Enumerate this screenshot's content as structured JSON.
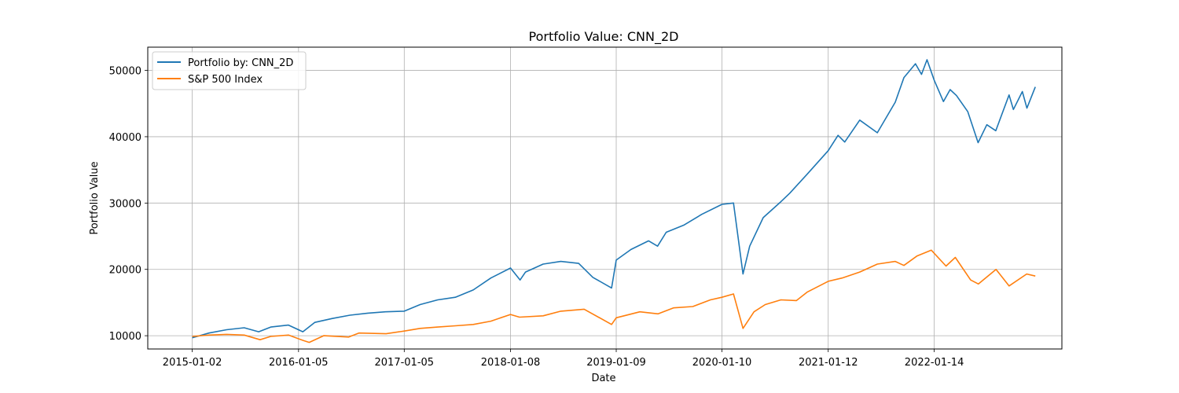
{
  "chart_data": {
    "type": "line",
    "title": "Portfolio Value: CNN_2D",
    "xlabel": "Date",
    "ylabel": "Portfolio Value",
    "x_ticks": [
      "2015-01-02",
      "2016-01-05",
      "2017-01-05",
      "2018-01-08",
      "2019-01-09",
      "2020-01-10",
      "2021-01-12",
      "2022-01-14"
    ],
    "y_ticks": [
      10000,
      20000,
      30000,
      40000,
      50000
    ],
    "ylim": [
      8000,
      53500
    ],
    "xlim": [
      "2014-08-01",
      "2023-04-01"
    ],
    "grid": true,
    "legend_position": "top-left",
    "series": [
      {
        "name": "Portfolio by: CNN_2D",
        "color": "#1f77b4",
        "x": [
          "2015-01-02",
          "2015-03-01",
          "2015-05-01",
          "2015-07-01",
          "2015-08-20",
          "2015-10-01",
          "2015-12-01",
          "2016-01-20",
          "2016-03-01",
          "2016-05-01",
          "2016-07-01",
          "2016-09-01",
          "2016-11-01",
          "2017-01-05",
          "2017-03-01",
          "2017-05-01",
          "2017-07-01",
          "2017-09-01",
          "2017-11-01",
          "2018-01-08",
          "2018-02-10",
          "2018-03-01",
          "2018-05-01",
          "2018-07-01",
          "2018-09-01",
          "2018-10-20",
          "2018-12-24",
          "2019-01-09",
          "2019-03-01",
          "2019-05-01",
          "2019-06-01",
          "2019-07-01",
          "2019-09-01",
          "2019-11-01",
          "2020-01-10",
          "2020-02-19",
          "2020-03-23",
          "2020-04-15",
          "2020-06-01",
          "2020-08-01",
          "2020-09-01",
          "2020-11-01",
          "2021-01-12",
          "2021-02-15",
          "2021-03-10",
          "2021-05-01",
          "2021-07-01",
          "2021-09-01",
          "2021-10-01",
          "2021-11-10",
          "2021-12-01",
          "2021-12-20",
          "2022-01-14",
          "2022-02-15",
          "2022-03-10",
          "2022-04-01",
          "2022-05-10",
          "2022-06-15",
          "2022-07-15",
          "2022-08-15",
          "2022-09-30",
          "2022-10-15",
          "2022-11-15",
          "2022-12-01",
          "2022-12-30"
        ],
        "values": [
          9700,
          10400,
          10900,
          11200,
          10600,
          11300,
          11600,
          10600,
          12000,
          12600,
          13100,
          13400,
          13600,
          13700,
          14700,
          15400,
          15800,
          16900,
          18700,
          20200,
          18400,
          19600,
          20800,
          21200,
          20900,
          18800,
          17200,
          21400,
          23000,
          24300,
          23500,
          25600,
          26700,
          28300,
          29800,
          30000,
          19300,
          23500,
          27800,
          30200,
          31500,
          34400,
          37900,
          40200,
          39200,
          42500,
          40600,
          45200,
          48900,
          51000,
          49400,
          51600,
          48500,
          45300,
          47100,
          46200,
          43800,
          39100,
          41800,
          40900,
          46300,
          44100,
          46800,
          44300,
          47500
        ]
      },
      {
        "name": "S&P 500 Index",
        "color": "#ff7f0e",
        "x": [
          "2015-01-02",
          "2015-03-01",
          "2015-05-01",
          "2015-07-01",
          "2015-08-25",
          "2015-10-01",
          "2015-12-01",
          "2016-01-20",
          "2016-02-11",
          "2016-04-01",
          "2016-06-27",
          "2016-08-01",
          "2016-11-03",
          "2017-01-05",
          "2017-03-01",
          "2017-05-01",
          "2017-07-01",
          "2017-09-01",
          "2017-11-01",
          "2018-01-08",
          "2018-02-08",
          "2018-05-01",
          "2018-07-01",
          "2018-09-20",
          "2018-12-24",
          "2019-01-09",
          "2019-04-01",
          "2019-06-03",
          "2019-07-26",
          "2019-10-01",
          "2019-12-01",
          "2020-01-10",
          "2020-02-19",
          "2020-03-23",
          "2020-04-30",
          "2020-06-08",
          "2020-08-01",
          "2020-09-24",
          "2020-11-01",
          "2021-01-12",
          "2021-03-01",
          "2021-05-01",
          "2021-07-01",
          "2021-09-01",
          "2021-10-01",
          "2021-11-15",
          "2022-01-04",
          "2022-02-24",
          "2022-03-28",
          "2022-05-20",
          "2022-06-16",
          "2022-08-16",
          "2022-09-30",
          "2022-11-30",
          "2022-12-30"
        ],
        "values": [
          9900,
          10100,
          10200,
          10100,
          9400,
          9900,
          10100,
          9300,
          9000,
          10000,
          9800,
          10400,
          10300,
          10700,
          11100,
          11300,
          11500,
          11700,
          12200,
          13200,
          12800,
          13000,
          13700,
          14000,
          11700,
          12700,
          13600,
          13300,
          14200,
          14400,
          15400,
          15800,
          16300,
          11100,
          13600,
          14700,
          15400,
          15300,
          16600,
          18200,
          18700,
          19600,
          20800,
          21200,
          20600,
          22000,
          22900,
          20500,
          21800,
          18400,
          17800,
          20000,
          17500,
          19300,
          19000
        ]
      }
    ]
  }
}
